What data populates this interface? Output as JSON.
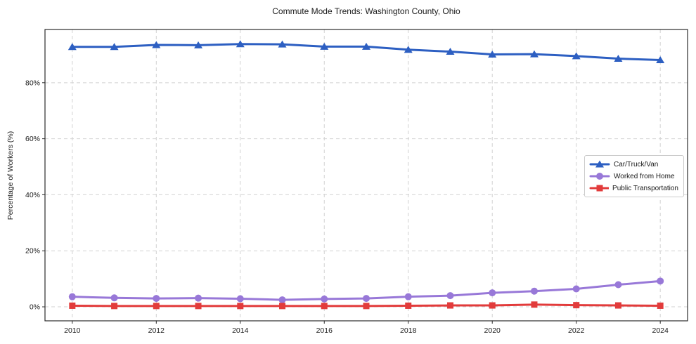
{
  "chart_data": {
    "type": "line",
    "title": "Commute Mode Trends: Washington County, Ohio",
    "xlabel": "",
    "ylabel": "Percentage of Workers (%)",
    "x": [
      2010,
      2011,
      2012,
      2013,
      2014,
      2015,
      2016,
      2017,
      2018,
      2019,
      2020,
      2021,
      2022,
      2023,
      2024
    ],
    "series": [
      {
        "name": "Car/Truck/Van",
        "color": "#2d5fc2",
        "marker": "triangle",
        "values": [
          92.8,
          92.8,
          93.5,
          93.4,
          93.8,
          93.7,
          92.9,
          92.9,
          91.8,
          91.1,
          90.1,
          90.2,
          89.5,
          88.6,
          88.1
        ]
      },
      {
        "name": "Worked from Home",
        "color": "#9878d8",
        "marker": "circle",
        "values": [
          3.6,
          3.2,
          3.0,
          3.1,
          2.9,
          2.5,
          2.8,
          3.0,
          3.6,
          4.0,
          5.0,
          5.6,
          6.4,
          7.9,
          9.2
        ]
      },
      {
        "name": "Public Transportation",
        "color": "#e23b3b",
        "marker": "square",
        "values": [
          0.4,
          0.3,
          0.3,
          0.3,
          0.3,
          0.3,
          0.3,
          0.3,
          0.4,
          0.5,
          0.5,
          0.8,
          0.6,
          0.5,
          0.4
        ]
      }
    ],
    "xlim": [
      2009.35,
      2024.65
    ],
    "ylim": [
      -5,
      99
    ],
    "xticks": {
      "values": [
        2010,
        2012,
        2014,
        2016,
        2018,
        2020,
        2022,
        2024
      ],
      "labels": [
        "2010",
        "2012",
        "2014",
        "2016",
        "2018",
        "2020",
        "2022",
        "2024"
      ]
    },
    "yticks": {
      "values": [
        0,
        20,
        40,
        60,
        80
      ],
      "labels": [
        "0%",
        "20%",
        "40%",
        "60%",
        "80%"
      ]
    },
    "grid": true,
    "grid_style": "dashed",
    "legend_position": "center-right",
    "colors": {
      "background": "#ffffff",
      "text": "#1a1a1a",
      "grid": "#d2d2d2",
      "spine": "#2b2b2b"
    }
  }
}
